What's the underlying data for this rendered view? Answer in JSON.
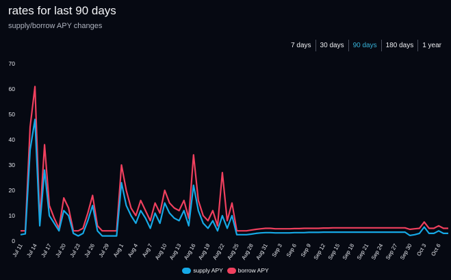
{
  "header": {
    "title": "rates for last 90 days",
    "subtitle": "supply/borrow APY changes"
  },
  "ranges": [
    "7 days",
    "30 days",
    "90 days",
    "180 days",
    "1 year"
  ],
  "active_range": "90 days",
  "colors": {
    "supply": "#16a9e6",
    "borrow": "#f0405e",
    "active_range": "#37b3d9"
  },
  "chart_data": {
    "type": "line",
    "title": "rates for last 90 days",
    "subtitle": "supply/borrow APY changes",
    "xlabel": "",
    "ylabel": "",
    "ylim": [
      0,
      70
    ],
    "y_ticks": [
      0,
      10,
      20,
      30,
      40,
      50,
      60,
      70
    ],
    "grid": false,
    "legend_position": "bottom-center",
    "x_tick_labels": [
      "Jul 11",
      "Jul 14",
      "Jul 17",
      "Jul 20",
      "Jul 23",
      "Jul 26",
      "Jul 29",
      "Aug 1",
      "Aug 4",
      "Aug 7",
      "Aug 10",
      "Aug 13",
      "Aug 16",
      "Aug 19",
      "Aug 22",
      "Aug 25",
      "Aug 28",
      "Aug 31",
      "Sep 3",
      "Sep 6",
      "Sep 9",
      "Sep 12",
      "Sep 15",
      "Sep 18",
      "Sep 21",
      "Sep 24",
      "Sep 27",
      "Sep 30",
      "Oct 3",
      "Oct 6"
    ],
    "x": [
      "Jul 11",
      "Jul 12",
      "Jul 13",
      "Jul 14",
      "Jul 15",
      "Jul 16",
      "Jul 17",
      "Jul 18",
      "Jul 19",
      "Jul 20",
      "Jul 21",
      "Jul 22",
      "Jul 23",
      "Jul 24",
      "Jul 25",
      "Jul 26",
      "Jul 27",
      "Jul 28",
      "Jul 29",
      "Jul 30",
      "Jul 31",
      "Aug 1",
      "Aug 2",
      "Aug 3",
      "Aug 4",
      "Aug 5",
      "Aug 6",
      "Aug 7",
      "Aug 8",
      "Aug 9",
      "Aug 10",
      "Aug 11",
      "Aug 12",
      "Aug 13",
      "Aug 14",
      "Aug 15",
      "Aug 16",
      "Aug 17",
      "Aug 18",
      "Aug 19",
      "Aug 20",
      "Aug 21",
      "Aug 22",
      "Aug 23",
      "Aug 24",
      "Aug 25",
      "Aug 26",
      "Aug 27",
      "Aug 28",
      "Aug 29",
      "Aug 30",
      "Aug 31",
      "Sep 1",
      "Sep 2",
      "Sep 3",
      "Sep 4",
      "Sep 5",
      "Sep 6",
      "Sep 7",
      "Sep 8",
      "Sep 9",
      "Sep 10",
      "Sep 11",
      "Sep 12",
      "Sep 13",
      "Sep 14",
      "Sep 15",
      "Sep 16",
      "Sep 17",
      "Sep 18",
      "Sep 19",
      "Sep 20",
      "Sep 21",
      "Sep 22",
      "Sep 23",
      "Sep 24",
      "Sep 25",
      "Sep 26",
      "Sep 27",
      "Sep 28",
      "Sep 29",
      "Sep 30",
      "Oct 1",
      "Oct 2",
      "Oct 3",
      "Oct 4",
      "Oct 5",
      "Oct 6",
      "Oct 7",
      "Oct 8"
    ],
    "series": [
      {
        "name": "supply APY",
        "color": "#16a9e6",
        "values": [
          2.5,
          2.8,
          36,
          48,
          6,
          28,
          10,
          7,
          4,
          12,
          10,
          3,
          2,
          3,
          8,
          14,
          4,
          2,
          2,
          2,
          2,
          23,
          14,
          10,
          7,
          12,
          9,
          5,
          11,
          7,
          15,
          11,
          9,
          8,
          12,
          6,
          22,
          12,
          7,
          5,
          8,
          4,
          10,
          5,
          10,
          2.5,
          2.5,
          2.5,
          2.7,
          3,
          3.2,
          3.3,
          3.3,
          3.2,
          3.2,
          3.2,
          3.2,
          3.3,
          3.3,
          3.3,
          3.4,
          3.4,
          3.4,
          3.5,
          3.5,
          3.5,
          3.5,
          3.5,
          3.5,
          3.5,
          3.5,
          3.5,
          3.5,
          3.5,
          3.5,
          3.5,
          3.5,
          3.5,
          3.5,
          3.5,
          3.5,
          2.2,
          2.5,
          3,
          5.5,
          3,
          3,
          4,
          3,
          3
        ]
      },
      {
        "name": "borrow APY",
        "color": "#f0405e",
        "values": [
          4,
          4,
          45,
          61,
          8,
          38,
          14,
          9,
          5,
          17,
          13,
          4,
          4,
          5,
          11,
          18,
          6,
          4,
          4,
          4,
          4,
          30,
          20,
          13,
          10,
          16,
          12,
          8,
          15,
          11,
          20,
          15,
          13,
          12,
          16,
          9,
          34,
          16,
          10,
          8,
          12,
          6,
          27,
          8,
          15,
          4,
          4,
          4,
          4.3,
          4.6,
          4.8,
          5,
          5,
          4.8,
          4.8,
          4.8,
          4.8,
          4.9,
          4.9,
          5,
          5,
          5,
          5,
          5.1,
          5.1,
          5.2,
          5.2,
          5.2,
          5.2,
          5.2,
          5.2,
          5.2,
          5.2,
          5.2,
          5.2,
          5.2,
          5.2,
          5.2,
          5.2,
          5.2,
          5.2,
          4.6,
          4.8,
          5,
          7.5,
          5,
          5,
          6,
          5,
          5
        ]
      }
    ]
  },
  "legend": {
    "supply": "supply APY",
    "borrow": "borrow APY"
  }
}
